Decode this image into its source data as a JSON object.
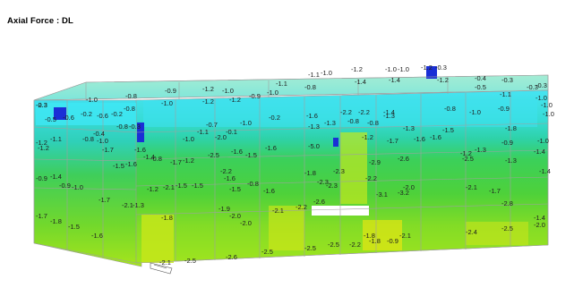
{
  "title": "Axial Force : DL",
  "colors": {
    "background": "#ffffff",
    "cyan": "#3fe4ef",
    "teal": "#2fd4b8",
    "green": "#3cd23f",
    "lime": "#9be41c",
    "yellow": "#e6e612",
    "blue": "#1a2fd6",
    "frame": "#a9a9a9"
  },
  "roof_labels": [
    "-1.0",
    "-1.2",
    "-1.1",
    "-1.0",
    "-1.2",
    "-1.0",
    "-0.3",
    "-1.0",
    "-0.8",
    "-0.9",
    "-1.2",
    "-1.0",
    "-1.1",
    "-0.8",
    "-1.4",
    "-1.4",
    "-1.2",
    "-0.4",
    "-0.3",
    "-0.3",
    "-0.8",
    "-1.0",
    "-1.2",
    "-1.2",
    "-0.9",
    "-1.0",
    "-0.5",
    "-0.3",
    "-1.1",
    "-1.0",
    "-1.0"
  ],
  "front_labels": [
    "-0.3",
    "-0.5",
    "-0.6",
    "-0.2",
    "-0.6",
    "-0.2",
    "-0.8",
    "-0.3",
    "-0.4",
    "-1.0",
    "-0.7",
    "-2.0",
    "-0.1",
    "-1.0",
    "-0.2",
    "-1.6",
    "-2.2",
    "-2.2",
    "-1.4",
    "-0.8",
    "-1.0",
    "-0.9",
    "-1.0",
    "-1.2",
    "-1.1",
    "-0.8",
    "-1.0",
    "-1.6",
    "-1.4",
    "-1.1",
    "-1.3",
    "-1.3",
    "-0.8",
    "-0.8",
    "-1.3",
    "-1.3",
    "-1.6",
    "-1.5",
    "-1.8",
    "-0.9",
    "-1.0",
    "-1.2",
    "-1.7",
    "-1.5",
    "-1.6",
    "-0.8",
    "-1.7",
    "-1.2",
    "-2.5",
    "-1.6",
    "-1.5",
    "-1.6",
    "-5.0",
    "-1.2",
    "-1.7",
    "-1.6",
    "-1.2",
    "-1.3",
    "-1.3",
    "-1.4",
    "-0.9",
    "-1.4",
    "-0.9",
    "-1.0",
    "-1.2",
    "-1.5",
    "-1.5",
    "-1.6",
    "-0.8",
    "-1.8",
    "-2.3",
    "-2.9",
    "-2.6",
    "-2.5",
    "-1.4",
    "-1.7",
    "-1.3",
    "-2.1",
    "-2.1",
    "-2.2",
    "-1.5",
    "-1.6",
    "-2.3",
    "-2.3",
    "-2.2",
    "-2.0",
    "-2.1",
    "-1.7",
    "-1.9",
    "-2.0",
    "-2.1",
    "-2.2",
    "-2.6",
    "-3.1",
    "-3.2",
    "-2.8",
    "-1.7",
    "-1.8",
    "-1.5",
    "-1.6",
    "-1.8",
    "-2.0",
    "-1.4",
    "-2.0",
    "-2.1",
    "-2.5",
    "-2.6",
    "-2.5",
    "-2.5",
    "-2.5",
    "-2.2",
    "-1.8",
    "-0.9",
    "-1.8",
    "-2.1",
    "-2.4",
    "-2.5",
    "-2.3"
  ]
}
